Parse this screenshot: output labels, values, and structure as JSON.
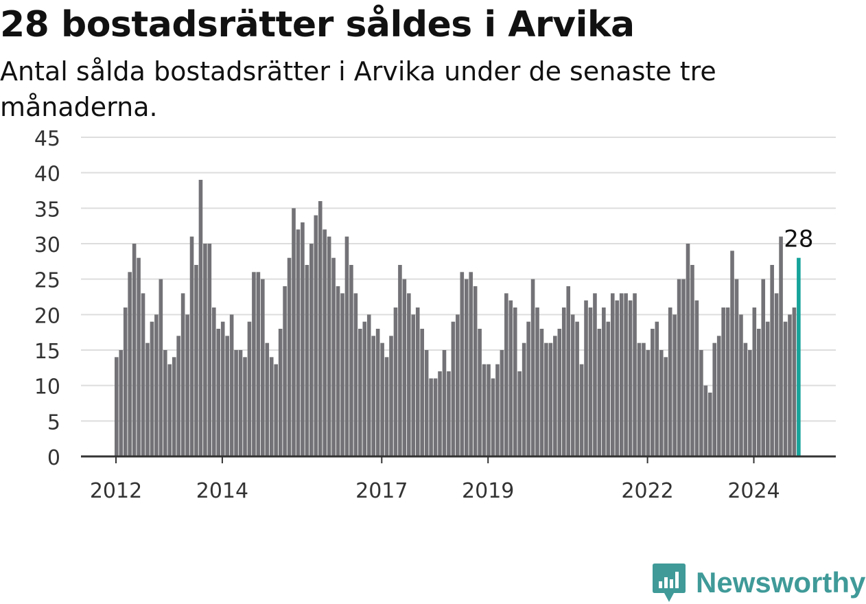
{
  "header": {
    "title": "28 bostadsrätter såldes i Arvika",
    "subtitle": "Antal sålda bostadsrätter i Arvika under de senaste tre månaderna."
  },
  "brand": {
    "name": "Newsworthy",
    "icon": "newsworthy-logo-icon",
    "color": "#3f9a98"
  },
  "chart_data": {
    "type": "bar",
    "title": "28 bostadsrätter såldes i Arvika",
    "subtitle": "Antal sålda bostadsrätter i Arvika under de senaste tre månaderna.",
    "xlabel": "",
    "ylabel": "",
    "x_start": "2012-01",
    "x_ticks": [
      "2012",
      "2014",
      "2017",
      "2019",
      "2022",
      "2024"
    ],
    "y_ticks": [
      0,
      5,
      10,
      15,
      20,
      25,
      30,
      35,
      40,
      45
    ],
    "ylim": [
      0,
      45
    ],
    "grid": true,
    "colors": {
      "bar": "#737276",
      "highlight": "#16a39a",
      "grid": "#dddddd"
    },
    "highlight_label": "28",
    "values": [
      14,
      15,
      21,
      26,
      30,
      28,
      23,
      16,
      19,
      20,
      25,
      15,
      13,
      14,
      17,
      23,
      20,
      31,
      27,
      39,
      30,
      30,
      21,
      18,
      19,
      17,
      20,
      15,
      15,
      14,
      19,
      26,
      26,
      25,
      16,
      14,
      13,
      18,
      24,
      28,
      35,
      32,
      33,
      27,
      30,
      34,
      36,
      32,
      31,
      28,
      24,
      23,
      31,
      27,
      23,
      18,
      19,
      20,
      17,
      18,
      16,
      14,
      17,
      21,
      27,
      25,
      23,
      20,
      21,
      18,
      15,
      11,
      11,
      12,
      15,
      12,
      19,
      20,
      26,
      25,
      26,
      24,
      18,
      13,
      13,
      11,
      13,
      15,
      23,
      22,
      21,
      12,
      16,
      19,
      25,
      21,
      18,
      16,
      16,
      17,
      18,
      21,
      24,
      20,
      19,
      13,
      22,
      21,
      23,
      18,
      21,
      19,
      23,
      22,
      23,
      23,
      22,
      23,
      16,
      16,
      15,
      18,
      19,
      15,
      14,
      21,
      20,
      25,
      25,
      30,
      27,
      22,
      15,
      10,
      9,
      16,
      17,
      21,
      21,
      29,
      25,
      20,
      16,
      15,
      21,
      18,
      25,
      19,
      27,
      23,
      31,
      19,
      20,
      21,
      28
    ]
  }
}
